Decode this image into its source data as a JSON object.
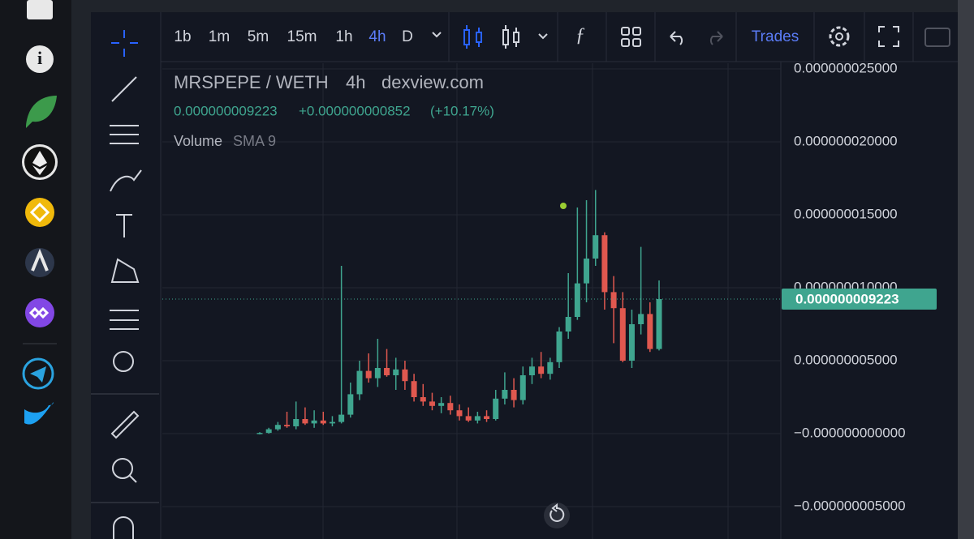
{
  "toolbar": {
    "intervals": [
      "1b",
      "1m",
      "5m",
      "15m",
      "1h",
      "4h",
      "D"
    ],
    "active_interval": "4h",
    "trades": "Trades"
  },
  "chart_data": {
    "type": "candlestick",
    "pair": "MRSPEPE / WETH",
    "interval": "4h",
    "source": "dexview.com",
    "price": "0.000000009223",
    "change": "+0.000000000852",
    "change_pct": "(+10.17%)",
    "indicator": "Volume",
    "indicator_param": "SMA 9",
    "up_color": "#3fa58f",
    "down_color": "#e0584f",
    "last_price": {
      "value": 9.223e-09,
      "label": "0.000000009223"
    },
    "ylim": [
      -7.222e-09,
      2.5389e-08
    ],
    "yticks": [
      {
        "value": 2.5e-08,
        "label": "0.000000025000"
      },
      {
        "value": 2e-08,
        "label": "0.000000020000"
      },
      {
        "value": 1.5e-08,
        "label": "0.000000015000"
      },
      {
        "value": 1e-08,
        "label": "0.000000010000"
      },
      {
        "value": 5e-09,
        "label": "0.000000005000"
      },
      {
        "value": 0,
        "label": "−0.000000000000"
      },
      {
        "value": -5e-09,
        "label": "−0.000000005000"
      }
    ],
    "grid": true,
    "open": [
      0,
      5e-11,
      3e-10,
      6e-10,
      5e-10,
      1e-09,
      7e-10,
      9e-10,
      7e-10,
      8e-10,
      1.3e-09,
      2.7e-09,
      4.3e-09,
      3.8e-09,
      4.5e-09,
      4e-09,
      4.4e-09,
      3.6e-09,
      2.5e-09,
      2.2e-09,
      1.9e-09,
      2.1e-09,
      1.6e-09,
      1.2e-09,
      9e-10,
      1.2e-09,
      1e-09,
      2.4e-09,
      3e-09,
      2.3e-09,
      4e-09,
      4.6e-09,
      4.1e-09,
      4.9e-09,
      7e-09,
      8e-09,
      1.03e-08,
      1.2e-08,
      1.36e-08,
      9.7e-09,
      8.6e-09,
      5e-09,
      7.5e-09,
      8.2e-09,
      5.8e-09
    ],
    "high": [
      1e-10,
      4e-10,
      8e-10,
      1.5e-09,
      2.2e-09,
      1.8e-09,
      1.6e-09,
      1.5e-09,
      1.2e-09,
      1.15e-08,
      3.5e-09,
      5e-09,
      5.5e-09,
      6.5e-09,
      5.8e-09,
      5.2e-09,
      5e-09,
      4.1e-09,
      3.4e-09,
      2.8e-09,
      2.5e-09,
      2.6e-09,
      2e-09,
      1.8e-09,
      1.5e-09,
      1.6e-09,
      3e-09,
      4.2e-09,
      3.8e-09,
      4.6e-09,
      5.2e-09,
      5.6e-09,
      5.2e-09,
      7.3e-09,
      1.1e-08,
      1.55e-08,
      1.6e-08,
      1.67e-08,
      1.38e-08,
      1.08e-08,
      9.7e-09,
      8.5e-09,
      1.28e-08,
      9e-09,
      1.05e-08
    ],
    "low": [
      -5e-11,
      0,
      2e-10,
      4e-10,
      3e-10,
      6e-10,
      4e-10,
      6e-10,
      5e-10,
      7e-10,
      1.1e-09,
      2.3e-09,
      3.5e-09,
      3.2e-09,
      3.9e-09,
      3e-09,
      3e-09,
      2.2e-09,
      1.9e-09,
      1.6e-09,
      1.4e-09,
      1.3e-09,
      9e-10,
      8e-10,
      7e-10,
      8e-10,
      9e-10,
      2e-09,
      1.8e-09,
      2e-09,
      3.4e-09,
      3.8e-09,
      3.7e-09,
      4.5e-09,
      6.5e-09,
      7.8e-09,
      9e-09,
      1.15e-08,
      8.5e-09,
      6.2e-09,
      4.9e-09,
      4.5e-09,
      6.8e-09,
      5.6e-09,
      5.7e-09
    ],
    "close": [
      5e-11,
      3e-10,
      6e-10,
      5e-10,
      1e-09,
      7e-10,
      9e-10,
      7e-10,
      8e-10,
      1.3e-09,
      2.7e-09,
      4.3e-09,
      3.8e-09,
      4.5e-09,
      4e-09,
      4.4e-09,
      3.6e-09,
      2.5e-09,
      2.2e-09,
      1.9e-09,
      2.1e-09,
      1.6e-09,
      1.2e-09,
      9e-10,
      1.2e-09,
      1e-09,
      2.4e-09,
      3e-09,
      2.3e-09,
      4e-09,
      4.6e-09,
      4.1e-09,
      4.9e-09,
      7e-09,
      8e-09,
      1.03e-08,
      1.2e-08,
      1.36e-08,
      9.7e-09,
      8.6e-09,
      5e-09,
      7.5e-09,
      8.2e-09,
      5.8e-09,
      9.223e-09
    ]
  }
}
